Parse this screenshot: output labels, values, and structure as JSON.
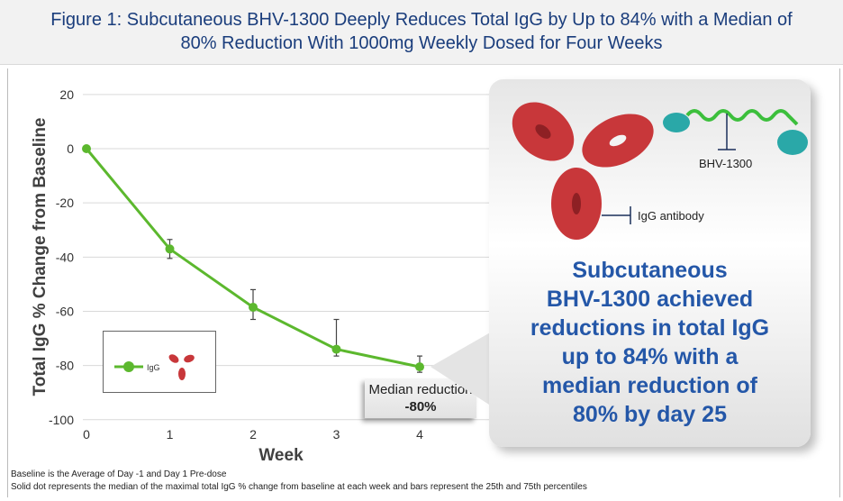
{
  "title": {
    "line1": "Figure 1: Subcutaneous BHV-1300 Deeply Reduces Total IgG by Up to 84% with a Median of",
    "line2": "80% Reduction With 1000mg Weekly Dosed for Four Weeks"
  },
  "chart_data": {
    "type": "line",
    "xlabel": "Week",
    "ylabel": "Total IgG % Change from Baseline",
    "x": [
      0,
      1,
      2,
      3,
      4
    ],
    "xlim": [
      0,
      4
    ],
    "ylim": [
      -100,
      20
    ],
    "yticks": [
      20,
      0,
      -20,
      -40,
      -60,
      -80,
      -100
    ],
    "xticks": [
      0,
      1,
      2,
      3,
      4
    ],
    "grid": true,
    "series": [
      {
        "name": "IgG",
        "color": "#5cb82e",
        "values": [
          0,
          -37,
          -58.5,
          -74,
          -80.5
        ],
        "p25": [
          0,
          -40.5,
          -63,
          -76.5,
          -82.5
        ],
        "p75": [
          0,
          -33.5,
          -52,
          -63,
          -76.5
        ]
      }
    ],
    "legend": "bottom-left",
    "annotation": {
      "label": "Median reduction",
      "value": "-80%"
    }
  },
  "callout": {
    "text": "Subcutaneous BHV-1300 achieved reductions in total IgG up to 84% with a median reduction of 80% by day 25",
    "lines": [
      "Subcutaneous",
      "BHV-1300 achieved",
      "reductions in total IgG",
      "up to 84% with a",
      "median reduction of",
      "80% by day 25"
    ],
    "label_drug": "BHV-1300",
    "label_antibody": "IgG antibody"
  },
  "footnotes": [
    "Baseline is the Average of Day -1 and Day 1 Pre-dose",
    "Solid dot represents the median of the maximal total IgG % change from baseline at each week and bars represent the 25th and 75th percentiles"
  ],
  "colors": {
    "title": "#1a3d7c",
    "series": "#5cb82e",
    "callout_text": "#2457a8",
    "antibody": "#c8373a",
    "drug": "#2aa8a8"
  }
}
